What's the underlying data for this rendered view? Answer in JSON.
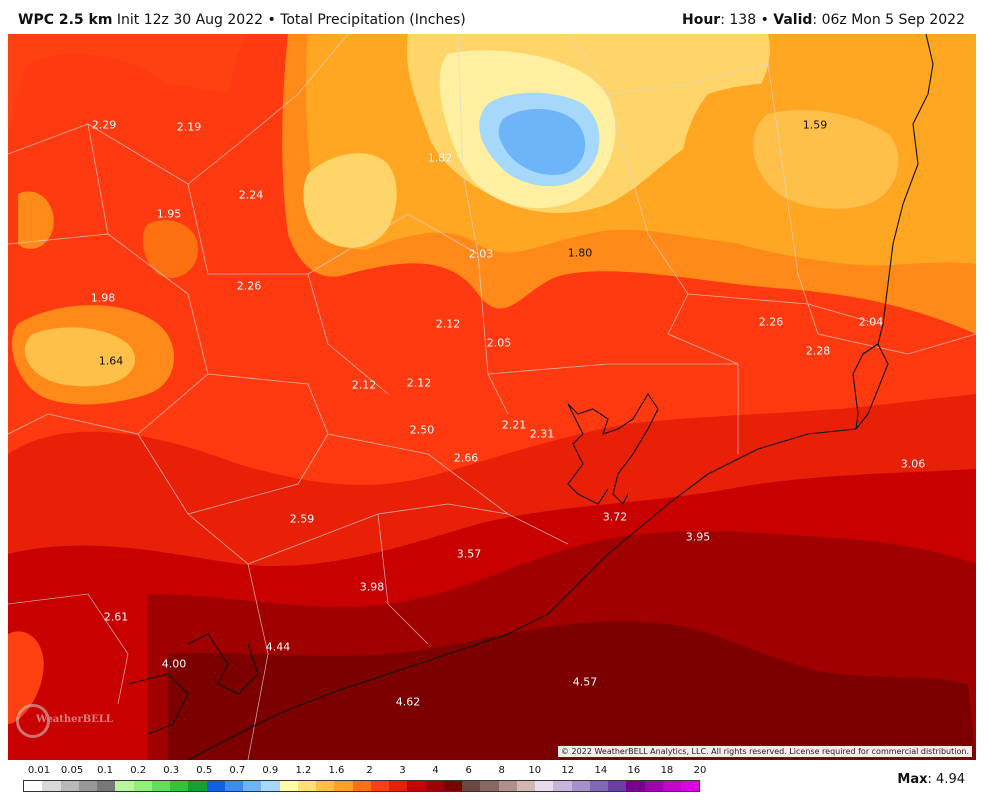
{
  "header": {
    "model": "WPC 2.5 km",
    "init": "Init 12z 30 Aug 2022",
    "separator": "•",
    "field": "Total Precipitation (Inches)",
    "hour_label": "Hour",
    "hour_value": ": 138",
    "valid_label": "Valid",
    "valid_value": ": 06z Mon 5 Sep 2022"
  },
  "map": {
    "region": "Southeast Texas / Houston and Upper Texas Coast",
    "point_values": [
      {
        "value": "2.29",
        "dark": false
      },
      {
        "value": "2.19",
        "dark": false
      },
      {
        "value": "1.82",
        "dark": false
      },
      {
        "value": "1.59",
        "dark": true
      },
      {
        "value": "2.24",
        "dark": false
      },
      {
        "value": "1.95",
        "dark": false
      },
      {
        "value": "2.03",
        "dark": false
      },
      {
        "value": "1.80",
        "dark": true
      },
      {
        "value": "2.26",
        "dark": false
      },
      {
        "value": "1.98",
        "dark": false
      },
      {
        "value": "2.12",
        "dark": false
      },
      {
        "value": "2.05",
        "dark": false
      },
      {
        "value": "2.26",
        "dark": false
      },
      {
        "value": "2.04",
        "dark": false
      },
      {
        "value": "2.28",
        "dark": false
      },
      {
        "value": "1.64",
        "dark": true
      },
      {
        "value": "2.12",
        "dark": false
      },
      {
        "value": "2.12",
        "dark": false
      },
      {
        "value": "2.21",
        "dark": false
      },
      {
        "value": "2.31",
        "dark": false
      },
      {
        "value": "2.50",
        "dark": false
      },
      {
        "value": "2.66",
        "dark": false
      },
      {
        "value": "3.06",
        "dark": false
      },
      {
        "value": "3.72",
        "dark": false
      },
      {
        "value": "3.95",
        "dark": false
      },
      {
        "value": "2.59",
        "dark": false
      },
      {
        "value": "3.57",
        "dark": false
      },
      {
        "value": "3.98",
        "dark": false
      },
      {
        "value": "2.61",
        "dark": false
      },
      {
        "value": "4.44",
        "dark": false
      },
      {
        "value": "4.00",
        "dark": false
      },
      {
        "value": "4.57",
        "dark": false
      },
      {
        "value": "4.62",
        "dark": false
      }
    ],
    "copyright": "© 2022 WeatherBELL Analytics, LLC. All rights reserved. License required for commercial distribution.",
    "logo_text": "WeatherBELL"
  },
  "legend": {
    "labels": [
      "0.01",
      "0.05",
      "0.1",
      "0.2",
      "0.3",
      "0.5",
      "0.7",
      "0.9",
      "1.2",
      "1.6",
      "2",
      "3",
      "4",
      "6",
      "8",
      "10",
      "12",
      "14",
      "16",
      "18",
      "20"
    ],
    "colors": [
      "#ffffff",
      "#d9d9d9",
      "#b8b8b8",
      "#989898",
      "#787878",
      "#b8f5a0",
      "#90ee7a",
      "#5ee05a",
      "#2fc43a",
      "#16a030",
      "#1060e8",
      "#3c8cf0",
      "#6eb4f8",
      "#a6d8fc",
      "#ffffa8",
      "#ffe070",
      "#ffc040",
      "#ffa020",
      "#ff7010",
      "#ff4010",
      "#e82008",
      "#c80000",
      "#a00000",
      "#7c0000",
      "#6a4840",
      "#8a6860",
      "#b09088",
      "#d4b8b0",
      "#e8dcec",
      "#c8b4dc",
      "#a890cc",
      "#8468b8",
      "#6a40a0",
      "#780090",
      "#a000b0",
      "#c800d0",
      "#e000e8"
    ],
    "max_label": "Max",
    "max_value": ": 4.94"
  }
}
